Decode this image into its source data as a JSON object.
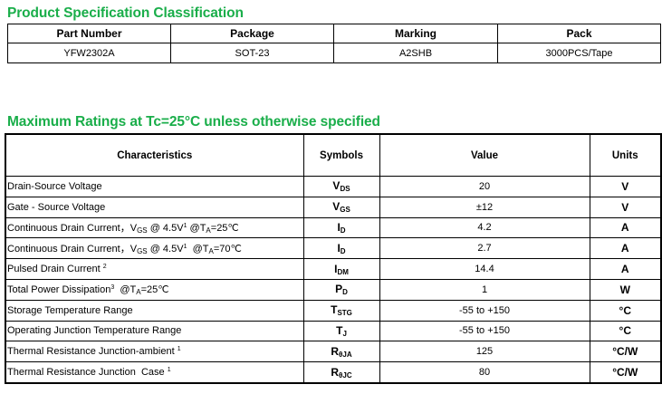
{
  "spec_section": {
    "title": "Product Specification Classification",
    "headers": [
      "Part Number",
      "Package",
      "Marking",
      "Pack"
    ],
    "row": [
      "YFW2302A",
      "SOT-23",
      "A2SHB",
      "3000PCS/Tape"
    ]
  },
  "ratings_section": {
    "title": "Maximum Ratings at Tc=25°C unless otherwise specified",
    "headers": [
      "Characteristics",
      "Symbols",
      "Value",
      "Units"
    ],
    "rows": [
      {
        "char": "Drain-Source Voltage",
        "sym": "V",
        "sub": "DS",
        "value": "20",
        "unit": "V"
      },
      {
        "char": "Gate - Source Voltage",
        "sym": "V",
        "sub": "GS",
        "value": "±12",
        "unit": "V"
      },
      {
        "char": "Continuous Drain Current，V",
        "char_sub": "GS",
        "char_rest": " @ 4.5V",
        "char_sup": "1",
        "char_tail": " @T",
        "char_tail_sub": "A",
        "char_end": "=25℃",
        "sym": "I",
        "sub": "D",
        "value": "4.2",
        "unit": "A"
      },
      {
        "char": "Continuous Drain Current，V",
        "char_sub": "GS",
        "char_rest": " @ 4.5V",
        "char_sup": "1",
        "char_tail": "  @T",
        "char_tail_sub": "A",
        "char_end": "=70℃",
        "sym": "I",
        "sub": "D",
        "value": "2.7",
        "unit": "A"
      },
      {
        "char": "Pulsed Drain Current ",
        "char_sup": "2",
        "sym": "I",
        "sub": "DM",
        "value": "14.4",
        "unit": "A"
      },
      {
        "char": "Total Power Dissipation",
        "char_sup": "3",
        "char_tail": "  @T",
        "char_tail_sub": "A",
        "char_end": "=25℃",
        "sym": "P",
        "sub": "D",
        "value": "1",
        "unit": "W"
      },
      {
        "char": "Storage Temperature Range",
        "sym": "T",
        "sub": "STG",
        "value": "-55 to +150",
        "unit": "°C"
      },
      {
        "char": "Operating Junction Temperature Range",
        "sym": "T",
        "sub": "J",
        "value": "-55 to +150",
        "unit": "°C"
      },
      {
        "char": "Thermal Resistance Junction-ambient ",
        "char_sup": "1",
        "sym": "R",
        "sub": "θJA",
        "value": "125",
        "unit": "°C/W"
      },
      {
        "char": "Thermal Resistance Junction  Case ",
        "char_sup": "1",
        "sym": "R",
        "sub": "θJC",
        "value": "80",
        "unit": "°C/W"
      }
    ]
  },
  "colors": {
    "heading": "#1aae4a",
    "border": "#000000"
  }
}
